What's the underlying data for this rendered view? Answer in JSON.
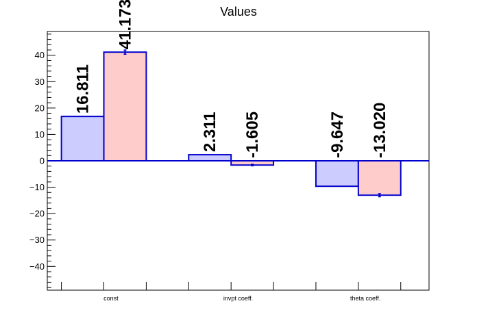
{
  "chart_data": {
    "type": "bar",
    "title": "Values",
    "categories": [
      "const",
      "invpt coeff.",
      "theta coeff."
    ],
    "series": [
      {
        "values": [
          16.811,
          2.311,
          -9.647
        ],
        "errors": [
          0,
          0,
          0
        ],
        "labels": [
          "16.811",
          "2.311",
          "-9.647"
        ],
        "fill": "#ccccff",
        "stroke": "#0000cc"
      },
      {
        "values": [
          41.173,
          -1.605,
          -13.02
        ],
        "errors": [
          0.8,
          0.3,
          0.6
        ],
        "labels": [
          "41.173",
          "-1.605",
          "-13.020"
        ],
        "fill": "#ffcccc",
        "stroke": "#0000cc"
      }
    ],
    "ylim": [
      -49,
      49
    ],
    "yticks": [
      -40,
      -30,
      -20,
      -10,
      0,
      10,
      20,
      30,
      40
    ],
    "ytick_labels": [
      "−40",
      "−30",
      "−20",
      "−10",
      "0",
      "10",
      "20",
      "30",
      "40"
    ],
    "xlabel": "",
    "ylabel": "",
    "legend": "none",
    "grid": false
  }
}
